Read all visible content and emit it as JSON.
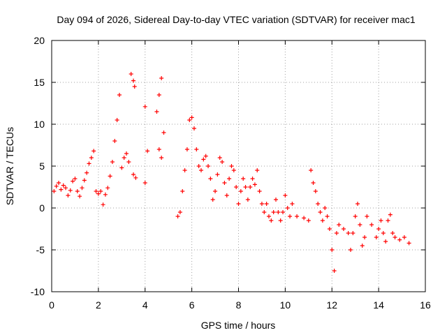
{
  "chart_data": {
    "type": "scatter",
    "title": "Day 094 of 2026, Sidereal Day-to-day VTEC variation (SDTVAR) for receiver mac1",
    "xlabel": "GPS time / hours",
    "ylabel": "SDTVAR / TECUs",
    "xlim": [
      0,
      16
    ],
    "ylim": [
      -10,
      20
    ],
    "x_ticks": [
      0,
      2,
      4,
      6,
      8,
      10,
      12,
      14,
      16
    ],
    "x_tick_labels": [
      "0",
      "2",
      "4",
      "6",
      "8",
      "10",
      "12",
      "14",
      "16"
    ],
    "y_ticks": [
      -10,
      -5,
      0,
      5,
      10,
      15,
      20
    ],
    "y_tick_labels": [
      "-10",
      "-5",
      "0",
      "5",
      "10",
      "15",
      "20"
    ],
    "grid": true,
    "marker": "+",
    "series_color": "#ff0000",
    "series": [
      {
        "name": "SDTVAR",
        "points": [
          [
            0.1,
            2.0
          ],
          [
            0.2,
            2.6
          ],
          [
            0.3,
            3.0
          ],
          [
            0.4,
            2.2
          ],
          [
            0.5,
            2.7
          ],
          [
            0.6,
            2.4
          ],
          [
            0.7,
            1.5
          ],
          [
            0.8,
            2.1
          ],
          [
            0.9,
            3.2
          ],
          [
            1.0,
            3.5
          ],
          [
            1.1,
            2.0
          ],
          [
            1.2,
            1.4
          ],
          [
            1.3,
            2.4
          ],
          [
            1.4,
            3.3
          ],
          [
            1.5,
            4.2
          ],
          [
            1.6,
            5.3
          ],
          [
            1.7,
            6.0
          ],
          [
            1.8,
            6.8
          ],
          [
            1.9,
            2.0
          ],
          [
            2.0,
            1.7
          ],
          [
            2.1,
            2.0
          ],
          [
            2.2,
            0.4
          ],
          [
            2.3,
            1.6
          ],
          [
            2.4,
            2.4
          ],
          [
            2.5,
            3.8
          ],
          [
            2.6,
            5.5
          ],
          [
            2.7,
            8.0
          ],
          [
            2.8,
            10.5
          ],
          [
            2.9,
            13.5
          ],
          [
            3.0,
            4.8
          ],
          [
            3.1,
            6.0
          ],
          [
            3.2,
            6.5
          ],
          [
            3.3,
            5.5
          ],
          [
            3.4,
            16.0
          ],
          [
            3.5,
            15.2
          ],
          [
            3.55,
            14.5
          ],
          [
            3.5,
            4.0
          ],
          [
            3.6,
            3.6
          ],
          [
            4.0,
            12.1
          ],
          [
            4.1,
            6.8
          ],
          [
            4.0,
            3.0
          ],
          [
            4.5,
            11.5
          ],
          [
            4.6,
            13.5
          ],
          [
            4.7,
            15.5
          ],
          [
            4.6,
            7.0
          ],
          [
            4.7,
            6.0
          ],
          [
            4.8,
            9.0
          ],
          [
            5.4,
            -1.0
          ],
          [
            5.5,
            -0.5
          ],
          [
            5.6,
            2.0
          ],
          [
            5.7,
            4.5
          ],
          [
            5.8,
            7.0
          ],
          [
            5.9,
            10.5
          ],
          [
            6.0,
            10.8
          ],
          [
            6.1,
            9.5
          ],
          [
            6.2,
            7.0
          ],
          [
            6.3,
            5.0
          ],
          [
            6.4,
            4.5
          ],
          [
            6.5,
            5.8
          ],
          [
            6.6,
            6.2
          ],
          [
            6.7,
            5.0
          ],
          [
            6.8,
            3.5
          ],
          [
            6.9,
            1.0
          ],
          [
            7.0,
            2.0
          ],
          [
            7.1,
            4.0
          ],
          [
            7.2,
            6.0
          ],
          [
            7.3,
            5.5
          ],
          [
            7.4,
            3.0
          ],
          [
            7.5,
            1.5
          ],
          [
            7.6,
            3.5
          ],
          [
            7.7,
            5.0
          ],
          [
            7.8,
            4.5
          ],
          [
            7.9,
            2.5
          ],
          [
            8.0,
            0.5
          ],
          [
            8.1,
            2.0
          ],
          [
            8.2,
            3.5
          ],
          [
            8.3,
            2.5
          ],
          [
            8.4,
            1.0
          ],
          [
            8.5,
            2.5
          ],
          [
            8.6,
            3.5
          ],
          [
            8.7,
            2.8
          ],
          [
            8.8,
            4.5
          ],
          [
            8.9,
            2.0
          ],
          [
            9.0,
            0.5
          ],
          [
            9.1,
            -0.5
          ],
          [
            9.2,
            0.5
          ],
          [
            9.3,
            -1.0
          ],
          [
            9.4,
            -1.5
          ],
          [
            9.5,
            -0.5
          ],
          [
            9.6,
            1.0
          ],
          [
            9.7,
            -0.5
          ],
          [
            9.8,
            -1.5
          ],
          [
            9.9,
            -0.5
          ],
          [
            10.0,
            1.5
          ],
          [
            10.1,
            0.0
          ],
          [
            10.2,
            -1.0
          ],
          [
            10.3,
            0.5
          ],
          [
            10.5,
            -1.0
          ],
          [
            10.8,
            -1.2
          ],
          [
            11.0,
            -1.5
          ],
          [
            11.1,
            4.5
          ],
          [
            11.2,
            3.0
          ],
          [
            11.3,
            2.0
          ],
          [
            11.4,
            0.5
          ],
          [
            11.5,
            -0.5
          ],
          [
            11.6,
            -1.5
          ],
          [
            11.7,
            0.0
          ],
          [
            11.8,
            -1.0
          ],
          [
            11.9,
            -2.5
          ],
          [
            12.0,
            -5.0
          ],
          [
            12.1,
            -7.5
          ],
          [
            12.2,
            -3.0
          ],
          [
            12.3,
            -2.0
          ],
          [
            12.5,
            -2.5
          ],
          [
            12.7,
            -3.0
          ],
          [
            12.8,
            -5.0
          ],
          [
            12.9,
            -3.0
          ],
          [
            13.0,
            -1.0
          ],
          [
            13.1,
            0.5
          ],
          [
            13.2,
            -2.0
          ],
          [
            13.3,
            -4.5
          ],
          [
            13.4,
            -3.5
          ],
          [
            13.5,
            -1.0
          ],
          [
            13.7,
            -2.0
          ],
          [
            13.9,
            -3.5
          ],
          [
            14.0,
            -2.5
          ],
          [
            14.1,
            -1.5
          ],
          [
            14.2,
            -3.0
          ],
          [
            14.3,
            -4.0
          ],
          [
            14.4,
            -1.5
          ],
          [
            14.5,
            -0.8
          ],
          [
            14.6,
            -3.0
          ],
          [
            14.7,
            -3.5
          ],
          [
            14.9,
            -3.8
          ],
          [
            15.1,
            -3.5
          ],
          [
            15.3,
            -4.2
          ]
        ]
      }
    ]
  }
}
